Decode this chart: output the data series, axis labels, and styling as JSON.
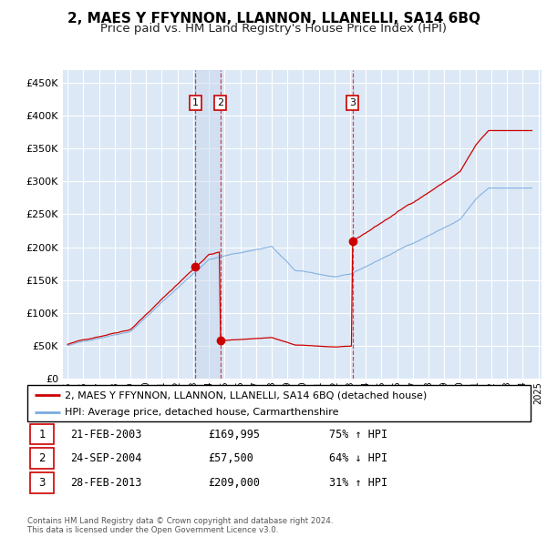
{
  "title": "2, MAES Y FFYNNON, LLANNON, LLANELLI, SA14 6BQ",
  "subtitle": "Price paid vs. HM Land Registry's House Price Index (HPI)",
  "title_fontsize": 11,
  "subtitle_fontsize": 9.5,
  "legend_label_red": "2, MAES Y FFYNNON, LLANNON, LLANELLI, SA14 6BQ (detached house)",
  "legend_label_blue": "HPI: Average price, detached house, Carmarthenshire",
  "footer": "Contains HM Land Registry data © Crown copyright and database right 2024.\nThis data is licensed under the Open Government Licence v3.0.",
  "ylim": [
    0,
    470000
  ],
  "yticks": [
    0,
    50000,
    100000,
    150000,
    200000,
    250000,
    300000,
    350000,
    400000,
    450000
  ],
  "sale_dates_num": [
    2003.14,
    2004.73,
    2013.16
  ],
  "sale_prices": [
    169995,
    57500,
    209000
  ],
  "sale_labels": [
    "1",
    "2",
    "3"
  ],
  "sale_info": [
    {
      "num": "1",
      "date": "21-FEB-2003",
      "price": "£169,995",
      "pct": "75% ↑ HPI"
    },
    {
      "num": "2",
      "date": "24-SEP-2004",
      "price": "£57,500",
      "pct": "64% ↓ HPI"
    },
    {
      "num": "3",
      "date": "28-FEB-2013",
      "price": "£209,000",
      "pct": "31% ↑ HPI"
    }
  ],
  "red_color": "#cc0000",
  "blue_color": "#7aabe0",
  "bg_color": "#dce8f5",
  "highlight_color": "#dce8f5",
  "grid_color": "#ffffff",
  "xlim_left": 1994.7,
  "xlim_right": 2025.2
}
